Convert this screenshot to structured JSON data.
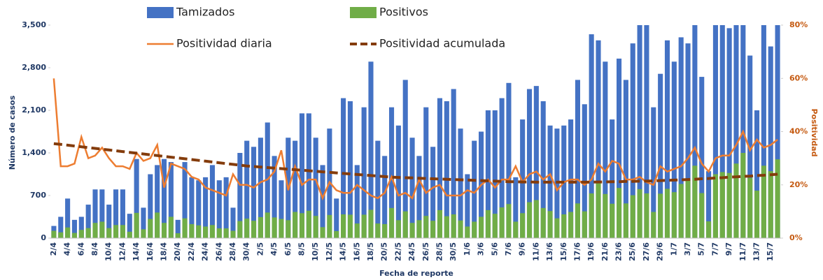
{
  "chart_data": {
    "type": "bar",
    "xlabel": "Fecha de reporte",
    "ylabel": "Número de casos",
    "y2label": "Positividad",
    "legend": "top",
    "categories": [
      "2/4",
      null,
      "4/4",
      null,
      "6/4",
      null,
      "8/4",
      null,
      "10/4",
      null,
      "12/4",
      null,
      "14/4",
      null,
      "16/4",
      null,
      "18/4",
      null,
      "20/4",
      null,
      "22/4",
      null,
      "24/4",
      null,
      "26/4",
      null,
      "28/4",
      null,
      "30/4",
      null,
      "2/5",
      null,
      "4/5",
      null,
      "6/5",
      null,
      "8/5",
      null,
      "10/5",
      null,
      "12/5",
      null,
      "14/5",
      null,
      "16/5",
      null,
      "18/5",
      null,
      "20/5",
      null,
      "22/5",
      null,
      "24/5",
      null,
      "26/5",
      null,
      "28/5",
      null,
      "30/5",
      null,
      "1/6",
      null,
      "3/6",
      null,
      "5/6",
      null,
      "7/6",
      null,
      "9/6",
      null,
      "11/6",
      null,
      "13/6",
      null,
      "15/6",
      null,
      "17/6",
      null,
      "19/6",
      null,
      "21/6",
      null,
      "23/6",
      null,
      "25/6",
      null,
      "27/6",
      null,
      "29/6",
      null,
      "1/7",
      null,
      "3/7",
      null,
      "5/7",
      null,
      "7/7",
      null,
      "9/7",
      null,
      "11/7",
      null,
      "13/7",
      null,
      "15/7",
      null
    ],
    "ylim": [
      0,
      3500
    ],
    "yticks": [
      0,
      700,
      {
        "value": 1400,
        "label": "1,400"
      },
      {
        "value": 2100,
        "label": "2,100"
      },
      {
        "value": 2800,
        "label": "2,800"
      },
      {
        "value": 3500,
        "label": "3,500"
      }
    ],
    "y2lim": [
      0,
      80
    ],
    "y2ticks": [
      {
        "value": 0,
        "label": "0%"
      },
      {
        "value": 20,
        "label": "20%"
      },
      {
        "value": 40,
        "label": "40%"
      },
      {
        "value": 60,
        "label": "60%"
      },
      {
        "value": 80,
        "label": "80%"
      }
    ],
    "series": [
      {
        "name": "Tamizados",
        "type": "bar",
        "color": "#4472c4",
        "values": [
          200,
          350,
          650,
          300,
          350,
          550,
          800,
          800,
          550,
          800,
          800,
          400,
          1300,
          500,
          1050,
          1200,
          1300,
          1250,
          300,
          1250,
          1000,
          950,
          1000,
          1200,
          950,
          1000,
          500,
          1400,
          1600,
          1500,
          1650,
          1900,
          1350,
          950,
          1650,
          1600,
          2050,
          2050,
          1650,
          1200,
          1800,
          650,
          2300,
          2250,
          1200,
          2150,
          2900,
          1600,
          1350,
          2150,
          1850,
          2600,
          1650,
          1350,
          2150,
          1500,
          2300,
          2250,
          2450,
          1800,
          1050,
          1600,
          1750,
          2100,
          2100,
          2300,
          2550,
          1000,
          1950,
          2450,
          2500,
          2250,
          1850,
          1800,
          1850,
          1950,
          2600,
          2200,
          3350,
          3250,
          2900,
          1950,
          2950,
          2600,
          3200,
          3500,
          3500,
          2150,
          2700,
          3250,
          2900,
          3300,
          3200,
          3500,
          2650,
          1100,
          3500,
          3500,
          3450,
          3500,
          3500,
          3000,
          2100,
          3500,
          3150,
          3500
        ]
      },
      {
        "name": "Positivos",
        "type": "bar",
        "color": "#70ad47",
        "values": [
          120,
          95,
          175,
          85,
          135,
          165,
          250,
          270,
          165,
          215,
          215,
          105,
          415,
          145,
          315,
          420,
          250,
          350,
          80,
          325,
          230,
          210,
          190,
          215,
          160,
          160,
          120,
          280,
          320,
          285,
          345,
          420,
          340,
          315,
          295,
          430,
          410,
          450,
          365,
          180,
          380,
          115,
          390,
          385,
          240,
          385,
          465,
          240,
          230,
          495,
          295,
          440,
          250,
          295,
          365,
          285,
          460,
          360,
          390,
          290,
          190,
          270,
          350,
          460,
          400,
          505,
          560,
          270,
          410,
          590,
          625,
          495,
          445,
          325,
          390,
          430,
          570,
          440,
          735,
          910,
          725,
          565,
          825,
          570,
          705,
          805,
          735,
          430,
          730,
          810,
          755,
          890,
          960,
          1190,
          740,
          275,
          1050,
          1085,
          1070,
          1225,
          1400,
          990,
          780,
          1190,
          1100,
          1295
        ]
      },
      {
        "name": "Positividad diaria",
        "type": "line",
        "axis": "y2",
        "color": "#ed7d31",
        "dashed": false,
        "values": [
          60,
          27,
          27,
          28,
          38,
          30,
          31,
          34,
          30,
          27,
          27,
          26,
          32,
          29,
          30,
          35,
          19,
          28,
          27,
          26,
          23,
          22,
          19,
          18,
          17,
          16,
          24,
          20,
          20,
          19,
          21,
          22,
          25,
          33,
          18,
          27,
          20,
          22,
          22,
          15,
          21,
          18,
          17,
          17,
          20,
          18,
          16,
          15,
          17,
          23,
          16,
          17,
          15,
          22,
          17,
          19,
          20,
          16,
          16,
          16,
          18,
          17,
          20,
          22,
          19,
          22,
          22,
          27,
          21,
          24,
          25,
          22,
          24,
          18,
          21,
          22,
          22,
          20,
          22,
          28,
          25,
          29,
          28,
          22,
          22,
          23,
          21,
          20,
          27,
          25,
          26,
          27,
          30,
          34,
          28,
          25,
          30,
          31,
          31,
          35,
          40,
          33,
          37,
          34,
          35,
          37
        ]
      },
      {
        "name": "Positividad acumulada",
        "type": "line",
        "axis": "y2",
        "color": "#843c0c",
        "dashed": true,
        "values": [
          35.5,
          35.2,
          34.9,
          34.6,
          34.3,
          34.0,
          33.7,
          33.4,
          33.1,
          32.8,
          32.5,
          32.2,
          31.9,
          31.6,
          31.3,
          31.0,
          30.7,
          30.4,
          30.1,
          29.8,
          29.5,
          29.2,
          28.9,
          28.6,
          28.3,
          28.0,
          27.7,
          27.4,
          27.1,
          26.9,
          26.7,
          26.5,
          26.3,
          26.1,
          25.9,
          25.7,
          25.5,
          25.3,
          25.1,
          24.9,
          24.7,
          24.5,
          24.3,
          24.1,
          23.9,
          23.7,
          23.5,
          23.3,
          23.1,
          22.9,
          22.8,
          22.7,
          22.6,
          22.5,
          22.4,
          22.3,
          22.2,
          22.1,
          22.0,
          21.9,
          21.8,
          21.7,
          21.6,
          21.5,
          21.4,
          21.3,
          21.2,
          21.2,
          21.1,
          21.1,
          21.0,
          21.0,
          21.0,
          21.0,
          21.0,
          21.0,
          21.0,
          21.0,
          21.0,
          21.1,
          21.1,
          21.2,
          21.2,
          21.3,
          21.3,
          21.4,
          21.4,
          21.5,
          21.6,
          21.7,
          21.8,
          21.9,
          22.0,
          22.1,
          22.3,
          22.4,
          22.6,
          22.7,
          22.9,
          23.0,
          23.2,
          23.3,
          23.5,
          23.6,
          23.8,
          24.0
        ]
      }
    ]
  }
}
